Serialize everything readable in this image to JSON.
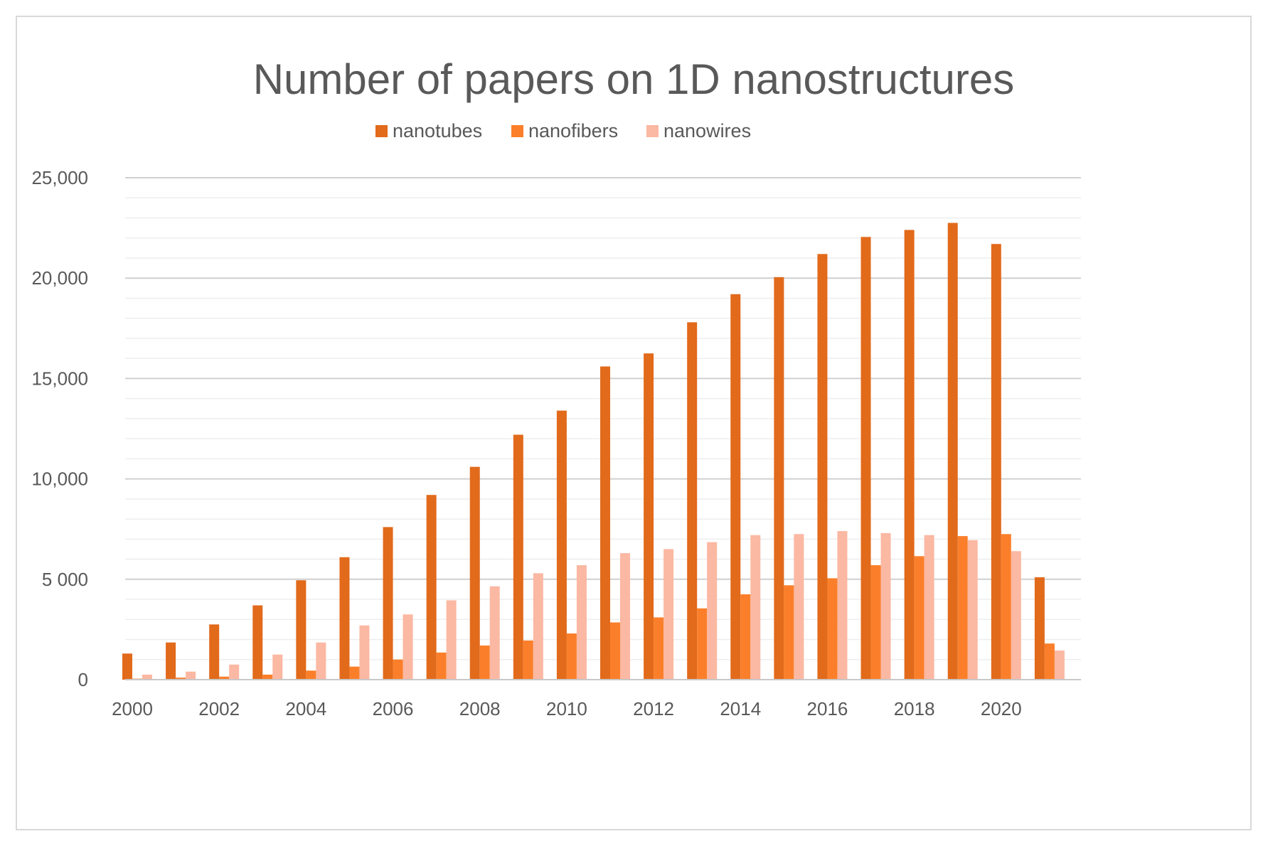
{
  "chart_data": {
    "type": "bar",
    "title": "Number of papers on 1D nanostructures",
    "xlabel": "",
    "ylabel": "",
    "ylim": [
      0,
      25000
    ],
    "y_ticks": [
      0,
      5000,
      10000,
      15000,
      20000,
      25000
    ],
    "y_tick_labels": [
      "0",
      "5 000",
      "10,000",
      "15,000",
      "20,000",
      "25,000"
    ],
    "categories": [
      "2000",
      "2001",
      "2002",
      "2003",
      "2004",
      "2005",
      "2006",
      "2007",
      "2008",
      "2009",
      "2010",
      "2011",
      "2012",
      "2013",
      "2014",
      "2015",
      "2016",
      "2017",
      "2018",
      "2019",
      "2020",
      "2021"
    ],
    "x_tick_labels": [
      "2000",
      "",
      "2002",
      "",
      "2004",
      "",
      "2006",
      "",
      "2008",
      "",
      "2010",
      "",
      "2012",
      "",
      "2014",
      "",
      "2016",
      "",
      "2018",
      "",
      "2020",
      ""
    ],
    "legend_position": "top-center",
    "gridlines": true,
    "series": [
      {
        "name": "nanotubes",
        "color": "#e26a1b",
        "values": [
          1300,
          1850,
          2750,
          3700,
          4950,
          6100,
          7600,
          9200,
          10600,
          12200,
          13400,
          15600,
          16250,
          17800,
          19200,
          20050,
          21200,
          22050,
          22400,
          22750,
          21700,
          5100
        ]
      },
      {
        "name": "nanofibers",
        "color": "#fb7f2a",
        "values": [
          50,
          100,
          150,
          250,
          450,
          650,
          1000,
          1350,
          1700,
          1950,
          2300,
          2850,
          3100,
          3550,
          4250,
          4700,
          5050,
          5700,
          6150,
          7150,
          7250,
          1800
        ]
      },
      {
        "name": "nanowires",
        "color": "#fbb8a2",
        "values": [
          250,
          400,
          750,
          1250,
          1850,
          2700,
          3250,
          3950,
          4650,
          5300,
          5700,
          6300,
          6500,
          6850,
          7200,
          7250,
          7400,
          7300,
          7200,
          6950,
          6400,
          1450
        ]
      }
    ]
  }
}
